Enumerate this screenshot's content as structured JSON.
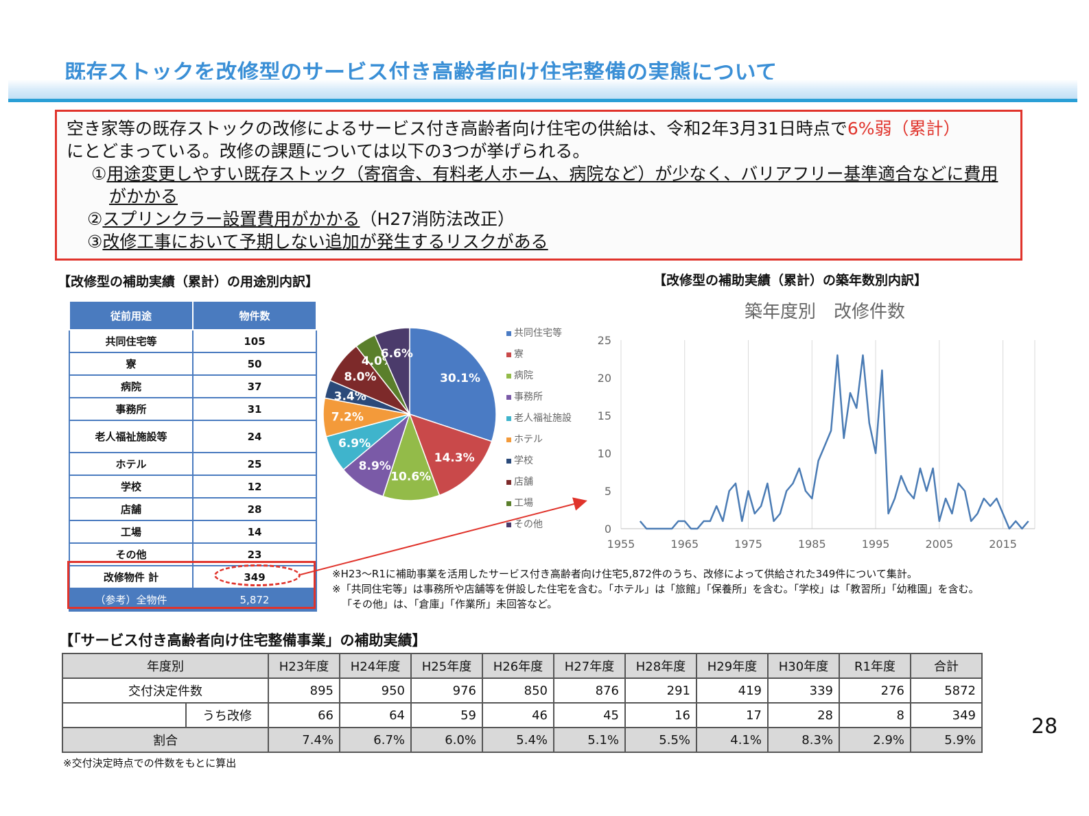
{
  "title": "既存ストックを改修型のサービス付き高齢者向け住宅整備の実態について",
  "summary": {
    "line1a": "空き家等の既存ストックの改修によるサービス付き高齢者向け住宅の供給は、令和2年3月31日時点で",
    "line1b": "6%弱（累計）",
    "line2": "にとどまっている。改修の課題については以下の3つが挙げられる。",
    "item1_num": "①",
    "item1a": "用途変更しやすい既存ストック（寄宿舎、有料老人ホーム、病院など）が少なく、バリアフリー基準適合などに費用",
    "item1b": "がかかる",
    "item2_num": "②",
    "item2a": "スプリンクラー設置費用がかかる",
    "item2b": "（H27消防法改正）",
    "item3_num": "③",
    "item3": "改修工事において予期しない追加が発生するリスクがある"
  },
  "left_heading": "【改修型の補助実績（累計）の用途別内訳】",
  "right_heading": "【改修型の補助実績（累計）の築年数別内訳】",
  "use_table": {
    "headers": [
      "従前用途",
      "物件数"
    ],
    "rows": [
      {
        "label": "共同住宅等",
        "value": "105"
      },
      {
        "label": "寮",
        "value": "50"
      },
      {
        "label": "病院",
        "value": "37"
      },
      {
        "label": "事務所",
        "value": "31"
      },
      {
        "label": "老人福祉施設等",
        "value": "24"
      },
      {
        "label": "ホテル",
        "value": "25"
      },
      {
        "label": "学校",
        "value": "12"
      },
      {
        "label": "店舗",
        "value": "28"
      },
      {
        "label": "工場",
        "value": "14"
      },
      {
        "label": "その他",
        "value": "23"
      }
    ],
    "total_label": "改修物件 計",
    "total_value": "349",
    "ref_label": "（参考）全物件",
    "ref_value": "5,872"
  },
  "notes": [
    "※H23～R1に補助事業を活用したサービス付き高齢者向け住宅5,872件のうち、改修によって供給された349件について集計。",
    "※「共同住宅等」は事務所や店舗等を併設した住宅を含む。「ホテル」は「旅館」「保養所」を含む。「学校」は「教習所」「幼稚園」を含む。",
    "「その他」は、「倉庫」「作業所」未回答など。"
  ],
  "chart_data": [
    {
      "type": "pie",
      "labels": [
        "共同住宅等",
        "寮",
        "病院",
        "事務所",
        "老人福祉施設",
        "ホテル",
        "学校",
        "店舗",
        "工場",
        "その他"
      ],
      "values": [
        30.1,
        14.3,
        10.6,
        8.9,
        6.9,
        7.2,
        3.4,
        8.0,
        4.0,
        6.6
      ],
      "data_labels": [
        "30.1%",
        "14.3%",
        "10.6%",
        "8.9%",
        "6.9%",
        "7.2%",
        "3.4%",
        "8.0%",
        "4.0%",
        "6.6%"
      ],
      "colors": [
        "#4a7bc4",
        "#c9494a",
        "#93bb49",
        "#7a5aa7",
        "#3fb4cc",
        "#f39a3a",
        "#2b4a7a",
        "#7d2a2a",
        "#5a7f2b",
        "#4b3b6b"
      ],
      "legend": "right"
    },
    {
      "type": "line",
      "title": "築年度別　改修件数",
      "x": [
        1958,
        1959,
        1960,
        1961,
        1962,
        1963,
        1964,
        1965,
        1966,
        1967,
        1968,
        1969,
        1970,
        1971,
        1972,
        1973,
        1974,
        1975,
        1976,
        1977,
        1978,
        1979,
        1980,
        1981,
        1982,
        1983,
        1984,
        1985,
        1986,
        1987,
        1988,
        1989,
        1990,
        1991,
        1992,
        1993,
        1994,
        1995,
        1996,
        1997,
        1998,
        1999,
        2000,
        2001,
        2002,
        2003,
        2004,
        2005,
        2006,
        2007,
        2008,
        2009,
        2010,
        2011,
        2012,
        2013,
        2014,
        2015,
        2016,
        2017,
        2018,
        2019
      ],
      "y": [
        1,
        0,
        0,
        0,
        0,
        0,
        1,
        1,
        0,
        0,
        1,
        1,
        3,
        1,
        5,
        6,
        1,
        5,
        2,
        3,
        6,
        1,
        2,
        5,
        6,
        8,
        5,
        4,
        9,
        11,
        13,
        23,
        12,
        18,
        16,
        23,
        14,
        10,
        21,
        2,
        4,
        7,
        5,
        4,
        8,
        5,
        8,
        1,
        4,
        2,
        6,
        5,
        1,
        2,
        4,
        3,
        4,
        2,
        0,
        1,
        0,
        1
      ],
      "xlim": [
        1955,
        2020
      ],
      "ylim": [
        0,
        25
      ],
      "xticks": [
        1955,
        1965,
        1975,
        1985,
        1995,
        2005,
        2015
      ],
      "yticks": [
        0,
        5,
        10,
        15,
        20,
        25
      ],
      "grid": "vertical",
      "color": "#4a7bb4"
    }
  ],
  "subsidy_heading": "【「サービス付き高齢者向け住宅整備事業」の補助実績】",
  "subsidy_table": {
    "header_label": "年度別",
    "years": [
      "H23年度",
      "H24年度",
      "H25年度",
      "H26年度",
      "H27年度",
      "H28年度",
      "H29年度",
      "H30年度",
      "R1年度",
      "合計"
    ],
    "row1_label": "交付決定件数",
    "row1": [
      "895",
      "950",
      "976",
      "850",
      "876",
      "291",
      "419",
      "339",
      "276",
      "5872"
    ],
    "row2_label": "うち改修",
    "row2": [
      "66",
      "64",
      "59",
      "46",
      "45",
      "16",
      "17",
      "28",
      "8",
      "349"
    ],
    "row3_label": "割合",
    "row3": [
      "7.4%",
      "6.7%",
      "6.0%",
      "5.4%",
      "5.1%",
      "5.5%",
      "4.1%",
      "8.3%",
      "2.9%",
      "5.9%"
    ]
  },
  "footnote": "※交付決定時点での件数をもとに算出",
  "page_number": "28"
}
